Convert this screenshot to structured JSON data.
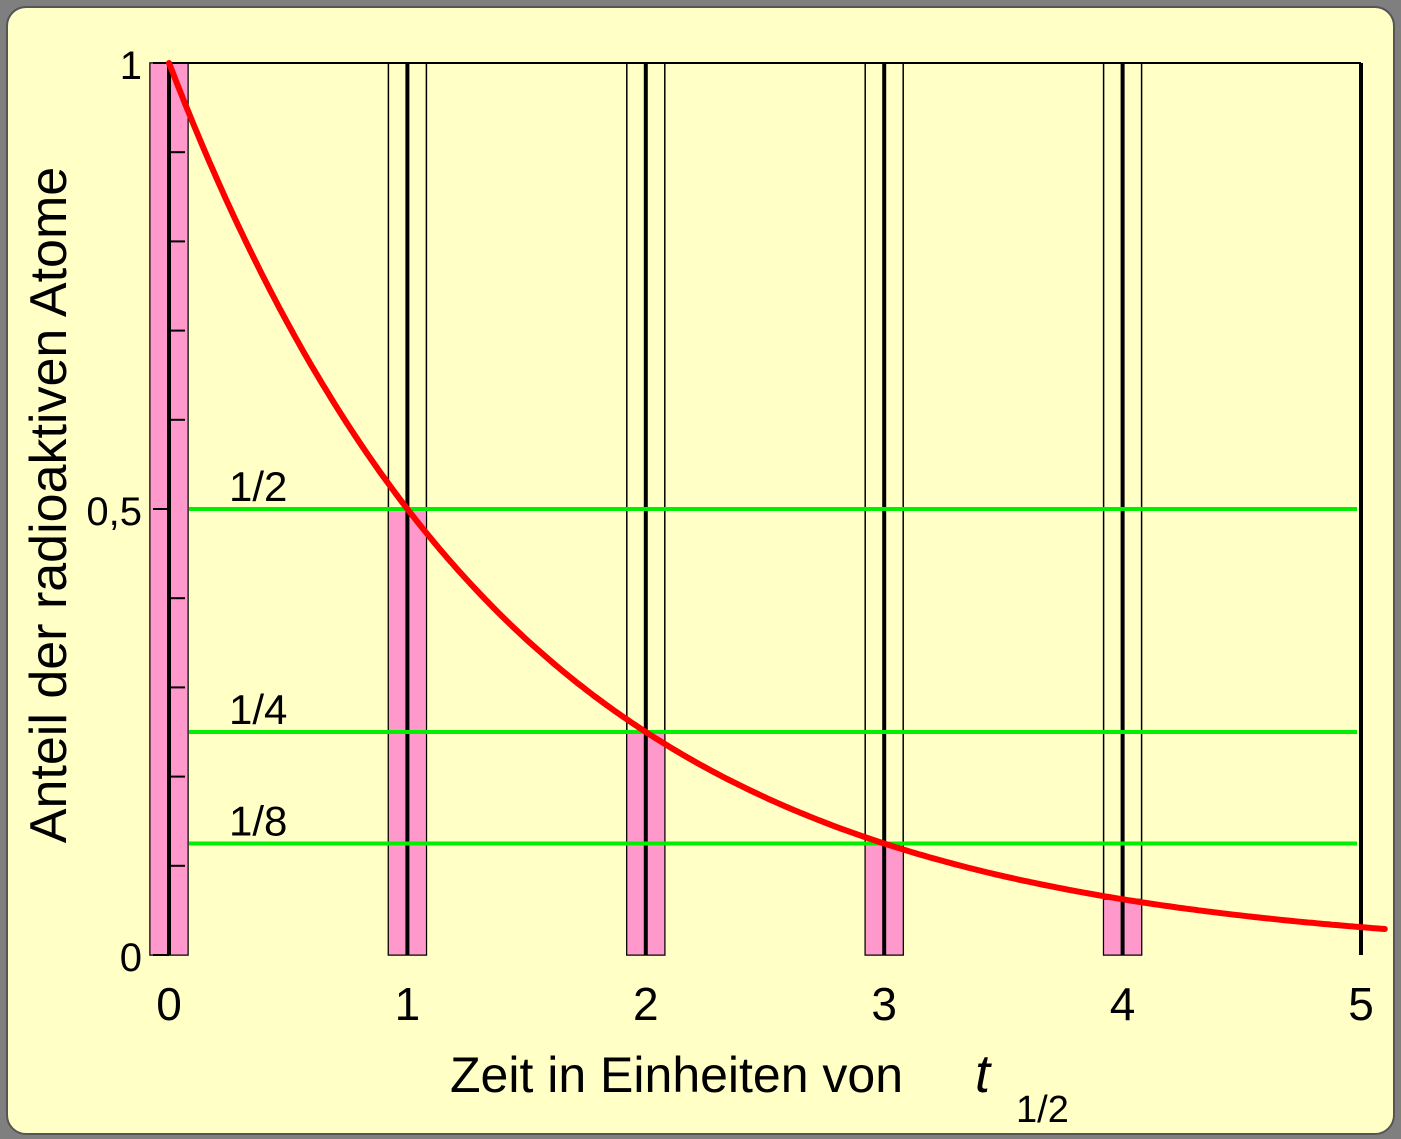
{
  "chart_data": {
    "type": "line",
    "title": "",
    "xlabel": "Zeit in Einheiten von",
    "xlabel_symbol": "t",
    "xlabel_subscript": "1/2",
    "ylabel": "Anteil der radioaktiven Atome",
    "xlim": [
      0,
      5
    ],
    "ylim": [
      0,
      1
    ],
    "x_ticks": [
      0,
      1,
      2,
      3,
      4,
      5
    ],
    "x_tick_labels": [
      "0",
      "1",
      "2",
      "3",
      "4",
      "5"
    ],
    "y_ticks": [
      0,
      0.5,
      1
    ],
    "y_tick_labels": [
      "0",
      "0,5",
      "1"
    ],
    "y_minor_ticks": [
      0.1,
      0.2,
      0.3,
      0.4,
      0.6,
      0.7,
      0.8,
      0.9
    ],
    "curve": {
      "name": "",
      "function": "2^(-x)",
      "x_range": [
        0,
        5.1
      ],
      "color": "#ff0000"
    },
    "bars": {
      "x": [
        0,
        1,
        2,
        3,
        4
      ],
      "values": [
        1,
        0.5,
        0.25,
        0.125,
        0.0625
      ],
      "color": "#ff99cc"
    },
    "reference_lines": [
      {
        "label": "1/2",
        "y": 0.5
      },
      {
        "label": "1/4",
        "y": 0.25
      },
      {
        "label": "1/8",
        "y": 0.125
      }
    ],
    "vertical_lines_x": [
      0,
      1,
      2,
      3,
      4,
      5
    ],
    "colors": {
      "background": "#ffffc6",
      "curve": "#ff0000",
      "reference": "#00ee00",
      "bar": "#ff99cc",
      "axis": "#000000"
    }
  }
}
